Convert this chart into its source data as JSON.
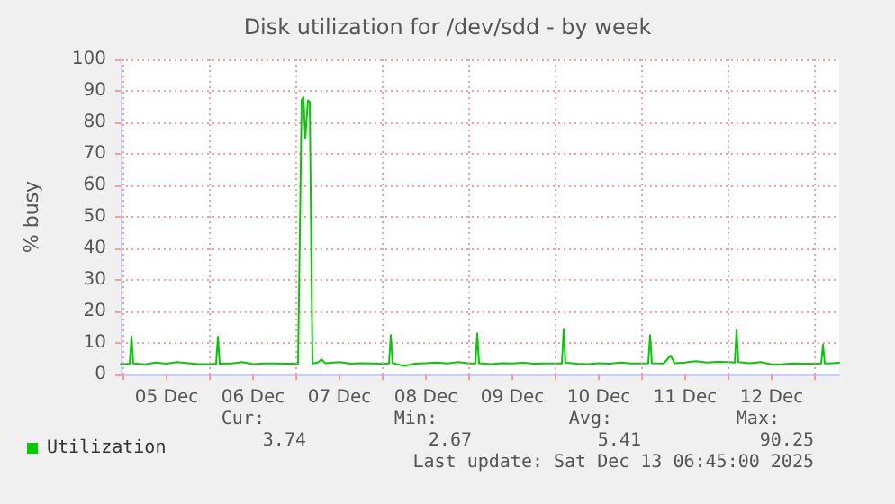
{
  "chart_data": {
    "type": "line",
    "title": "Disk utilization for /dev/sdd - by week",
    "ylabel": "% busy",
    "x": [
      "2025-12-04T23:15",
      "2025-12-05T00:00",
      "2025-12-05T01:45",
      "2025-12-05T02:15",
      "2025-12-05T02:45",
      "2025-12-05T06:00",
      "2025-12-05T09:00",
      "2025-12-05T12:00",
      "2025-12-05T15:00",
      "2025-12-05T18:00",
      "2025-12-05T21:00",
      "2025-12-06T00:00",
      "2025-12-06T01:45",
      "2025-12-06T02:15",
      "2025-12-06T02:45",
      "2025-12-06T06:00",
      "2025-12-06T09:00",
      "2025-12-06T12:00",
      "2025-12-06T15:00",
      "2025-12-06T18:00",
      "2025-12-06T21:00",
      "2025-12-07T00:00",
      "2025-12-07T00:30",
      "2025-12-07T01:30",
      "2025-12-07T02:00",
      "2025-12-07T02:30",
      "2025-12-07T03:15",
      "2025-12-07T03:45",
      "2025-12-07T04:30",
      "2025-12-07T06:00",
      "2025-12-07T07:00",
      "2025-12-07T08:00",
      "2025-12-07T12:00",
      "2025-12-07T15:00",
      "2025-12-07T18:00",
      "2025-12-07T21:00",
      "2025-12-08T00:00",
      "2025-12-08T01:45",
      "2025-12-08T02:15",
      "2025-12-08T02:45",
      "2025-12-08T06:00",
      "2025-12-08T09:00",
      "2025-12-08T12:00",
      "2025-12-08T15:00",
      "2025-12-08T18:00",
      "2025-12-08T21:00",
      "2025-12-09T00:00",
      "2025-12-09T01:45",
      "2025-12-09T02:15",
      "2025-12-09T02:45",
      "2025-12-09T06:00",
      "2025-12-09T09:00",
      "2025-12-09T12:00",
      "2025-12-09T15:00",
      "2025-12-09T18:00",
      "2025-12-09T21:00",
      "2025-12-10T00:00",
      "2025-12-10T01:45",
      "2025-12-10T02:15",
      "2025-12-10T02:45",
      "2025-12-10T06:00",
      "2025-12-10T09:00",
      "2025-12-10T12:00",
      "2025-12-10T15:00",
      "2025-12-10T18:00",
      "2025-12-10T21:00",
      "2025-12-11T00:00",
      "2025-12-11T01:45",
      "2025-12-11T02:15",
      "2025-12-11T02:45",
      "2025-12-11T06:00",
      "2025-12-11T08:00",
      "2025-12-11T09:00",
      "2025-12-11T12:00",
      "2025-12-11T15:00",
      "2025-12-11T18:00",
      "2025-12-11T21:00",
      "2025-12-12T00:00",
      "2025-12-12T01:45",
      "2025-12-12T02:15",
      "2025-12-12T02:45",
      "2025-12-12T06:00",
      "2025-12-12T09:00",
      "2025-12-12T12:00",
      "2025-12-12T15:00",
      "2025-12-12T18:00",
      "2025-12-12T21:00",
      "2025-12-13T00:00",
      "2025-12-13T01:45",
      "2025-12-13T02:15",
      "2025-12-13T02:45",
      "2025-12-13T05:00",
      "2025-12-13T06:45"
    ],
    "series": [
      {
        "name": "Utilization",
        "color": "#00cc00",
        "values": [
          3.3,
          3.3,
          3.4,
          12,
          3.5,
          3.2,
          3.8,
          3.4,
          3.9,
          3.6,
          3.3,
          3.3,
          3.4,
          12,
          3.4,
          3.5,
          3.9,
          3.3,
          3.5,
          3.5,
          3.4,
          3.4,
          3.5,
          87,
          88,
          75,
          87,
          86.5,
          3.5,
          3.8,
          4.8,
          3.6,
          3.9,
          3.4,
          3.6,
          3.5,
          3.4,
          3.5,
          12.5,
          3.6,
          2.7,
          3.4,
          3.6,
          3.8,
          3.5,
          3.9,
          3.5,
          3.5,
          13,
          3.6,
          3.3,
          3.6,
          3.5,
          3.7,
          3.4,
          3.5,
          3.5,
          3.5,
          14.5,
          3.7,
          3.4,
          3.3,
          3.6,
          3.4,
          3.8,
          3.5,
          3.5,
          3.6,
          12.5,
          3.6,
          3.5,
          6,
          3.6,
          3.8,
          4.2,
          3.8,
          4,
          3.9,
          3.8,
          14,
          3.9,
          3.6,
          3.9,
          3.2,
          3.3,
          3.5,
          3.4,
          3.4,
          3.5,
          9.5,
          3.5,
          3.6,
          3.7
        ]
      }
    ],
    "xlim": [
      "2025-12-04T23:15",
      "2025-12-13T06:45"
    ],
    "xticks": [
      {
        "value": "2025-12-05T00:00",
        "label": null
      },
      {
        "value": "2025-12-05T12:00",
        "label": "05 Dec"
      },
      {
        "value": "2025-12-06T00:00",
        "label": null
      },
      {
        "value": "2025-12-06T12:00",
        "label": "06 Dec"
      },
      {
        "value": "2025-12-07T00:00",
        "label": null
      },
      {
        "value": "2025-12-07T12:00",
        "label": "07 Dec"
      },
      {
        "value": "2025-12-08T00:00",
        "label": null
      },
      {
        "value": "2025-12-08T12:00",
        "label": "08 Dec"
      },
      {
        "value": "2025-12-09T00:00",
        "label": null
      },
      {
        "value": "2025-12-09T12:00",
        "label": "09 Dec"
      },
      {
        "value": "2025-12-10T00:00",
        "label": null
      },
      {
        "value": "2025-12-10T12:00",
        "label": "10 Dec"
      },
      {
        "value": "2025-12-11T00:00",
        "label": null
      },
      {
        "value": "2025-12-11T12:00",
        "label": "11 Dec"
      },
      {
        "value": "2025-12-12T00:00",
        "label": null
      },
      {
        "value": "2025-12-12T12:00",
        "label": "12 Dec"
      },
      {
        "value": "2025-12-13T00:00",
        "label": null
      }
    ],
    "ylim": [
      0,
      100
    ],
    "yticks": [
      0,
      10,
      20,
      30,
      40,
      50,
      60,
      70,
      80,
      90,
      100
    ],
    "grid": true,
    "legend": "bottom left",
    "marker": "none",
    "line_style": "solid",
    "annotations": [
      "Cur:",
      "Min:",
      "Avg:",
      "Max:",
      "3.74",
      "2.67",
      "5.41",
      "90.25",
      "Last update: Sat Dec 13 06:45:00 2025"
    ]
  }
}
